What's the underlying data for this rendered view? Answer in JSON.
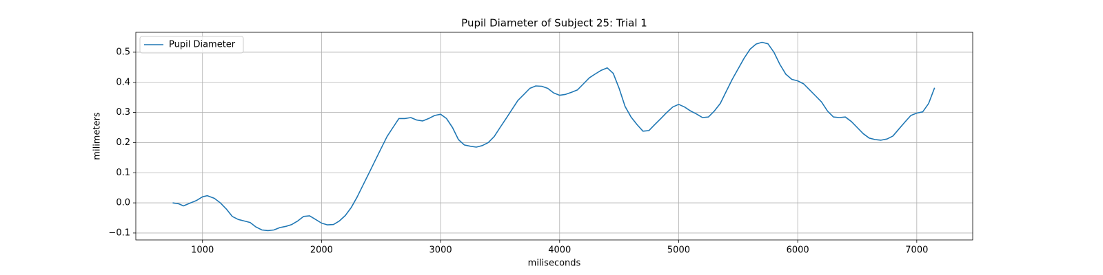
{
  "chart_data": {
    "type": "line",
    "title": "Pupil Diameter of Subject 25: Trial 1",
    "xlabel": "miliseconds",
    "ylabel": "milimeters",
    "xlim": [
      440,
      7470
    ],
    "ylim": [
      -0.123,
      0.566
    ],
    "xticks": [
      1000,
      2000,
      3000,
      4000,
      5000,
      6000,
      7000
    ],
    "yticks": [
      {
        "value": -0.1,
        "label": "−0.1"
      },
      {
        "value": 0,
        "label": "0.0"
      },
      0.1,
      0.2,
      0.3,
      0.4,
      0.5
    ],
    "grid": true,
    "legend": "upper left",
    "x": [
      750,
      800,
      840,
      900,
      950,
      1000,
      1040,
      1100,
      1150,
      1200,
      1250,
      1300,
      1350,
      1400,
      1450,
      1500,
      1550,
      1600,
      1650,
      1700,
      1750,
      1800,
      1850,
      1900,
      1950,
      2000,
      2050,
      2100,
      2150,
      2200,
      2250,
      2300,
      2350,
      2400,
      2450,
      2500,
      2550,
      2600,
      2650,
      2700,
      2750,
      2800,
      2850,
      2900,
      2950,
      3000,
      3050,
      3100,
      3150,
      3200,
      3250,
      3300,
      3350,
      3400,
      3450,
      3500,
      3550,
      3600,
      3650,
      3700,
      3750,
      3800,
      3850,
      3900,
      3950,
      4000,
      4050,
      4100,
      4150,
      4200,
      4250,
      4300,
      4350,
      4400,
      4450,
      4500,
      4550,
      4600,
      4650,
      4700,
      4750,
      4800,
      4850,
      4900,
      4950,
      5000,
      5050,
      5100,
      5150,
      5200,
      5250,
      5300,
      5350,
      5400,
      5450,
      5500,
      5550,
      5600,
      5650,
      5700,
      5750,
      5800,
      5850,
      5900,
      5950,
      6000,
      6050,
      6100,
      6150,
      6200,
      6250,
      6300,
      6350,
      6400,
      6450,
      6500,
      6550,
      6600,
      6650,
      6700,
      6750,
      6800,
      6850,
      6900,
      6950,
      7000,
      7050,
      7100,
      7150
    ],
    "series": [
      {
        "name": "Pupil Diameter",
        "color": "#1f77b4",
        "values": [
          0.0,
          -0.003,
          -0.01,
          0.0,
          0.008,
          0.02,
          0.024,
          0.015,
          0.0,
          -0.02,
          -0.045,
          -0.055,
          -0.06,
          -0.065,
          -0.08,
          -0.09,
          -0.092,
          -0.09,
          -0.082,
          -0.078,
          -0.072,
          -0.06,
          -0.045,
          -0.043,
          -0.055,
          -0.067,
          -0.073,
          -0.072,
          -0.06,
          -0.042,
          -0.015,
          0.02,
          0.06,
          0.1,
          0.14,
          0.18,
          0.22,
          0.25,
          0.28,
          0.28,
          0.283,
          0.275,
          0.272,
          0.28,
          0.29,
          0.294,
          0.28,
          0.25,
          0.21,
          0.192,
          0.188,
          0.185,
          0.19,
          0.2,
          0.22,
          0.25,
          0.28,
          0.31,
          0.34,
          0.36,
          0.38,
          0.388,
          0.387,
          0.38,
          0.365,
          0.357,
          0.36,
          0.367,
          0.375,
          0.395,
          0.415,
          0.428,
          0.44,
          0.448,
          0.43,
          0.38,
          0.32,
          0.285,
          0.26,
          0.238,
          0.24,
          0.26,
          0.28,
          0.3,
          0.318,
          0.327,
          0.318,
          0.305,
          0.295,
          0.283,
          0.285,
          0.305,
          0.33,
          0.37,
          0.41,
          0.445,
          0.48,
          0.51,
          0.527,
          0.533,
          0.528,
          0.5,
          0.46,
          0.427,
          0.41,
          0.405,
          0.395,
          0.375,
          0.355,
          0.335,
          0.305,
          0.285,
          0.283,
          0.285,
          0.27,
          0.25,
          0.23,
          0.215,
          0.21,
          0.208,
          0.212,
          0.222,
          0.245,
          0.268,
          0.29,
          0.298,
          0.302,
          0.33,
          0.382
        ]
      }
    ]
  }
}
